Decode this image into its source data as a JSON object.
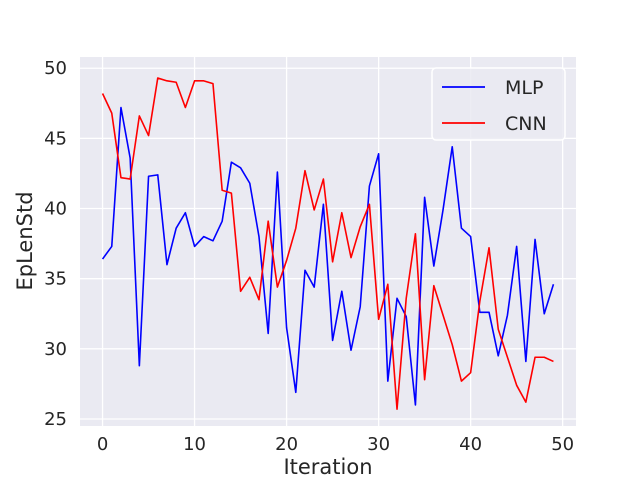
{
  "chart_data": {
    "type": "line",
    "title": "",
    "xlabel": "Iteration",
    "ylabel": "EpLenStd",
    "xlim": [
      -2.45,
      51.45
    ],
    "ylim": [
      24.5,
      50.8
    ],
    "xticks": [
      0,
      10,
      20,
      30,
      40,
      50
    ],
    "yticks": [
      25,
      30,
      35,
      40,
      45,
      50
    ],
    "grid": true,
    "background": "#eaeaf2",
    "legend_position": "top-right",
    "x": [
      0,
      1,
      2,
      3,
      4,
      5,
      6,
      7,
      8,
      9,
      10,
      11,
      12,
      13,
      14,
      15,
      16,
      17,
      18,
      19,
      20,
      21,
      22,
      23,
      24,
      25,
      26,
      27,
      28,
      29,
      30,
      31,
      32,
      33,
      34,
      35,
      36,
      37,
      38,
      39,
      40,
      41,
      42,
      43,
      44,
      45,
      46,
      47,
      48,
      49
    ],
    "series": [
      {
        "name": "MLP",
        "color": "#0000ff",
        "values": [
          36.4,
          37.3,
          47.2,
          43.6,
          28.8,
          42.3,
          42.4,
          36.0,
          38.6,
          39.7,
          37.3,
          38.0,
          37.7,
          39.1,
          43.3,
          42.9,
          41.8,
          38.0,
          31.1,
          42.6,
          31.5,
          26.9,
          35.6,
          34.4,
          40.3,
          30.6,
          34.1,
          29.9,
          33.0,
          41.6,
          43.9,
          27.7,
          33.6,
          32.3,
          26.0,
          40.8,
          35.9,
          39.9,
          44.4,
          38.6,
          38.0,
          32.6,
          32.6,
          29.5,
          32.4,
          37.3,
          29.1,
          37.8,
          32.5,
          34.6
        ]
      },
      {
        "name": "CNN",
        "color": "#ff0000",
        "values": [
          48.2,
          46.8,
          42.2,
          42.1,
          46.6,
          45.2,
          49.3,
          49.1,
          49.0,
          47.2,
          49.1,
          49.1,
          48.9,
          41.3,
          41.1,
          34.1,
          35.1,
          33.5,
          39.1,
          34.4,
          36.3,
          38.6,
          42.7,
          39.9,
          42.1,
          36.2,
          39.7,
          36.5,
          38.7,
          40.3,
          32.1,
          34.6,
          25.7,
          33.6,
          38.2,
          27.8,
          34.5,
          32.4,
          30.3,
          27.7,
          28.3,
          33.4,
          37.2,
          31.4,
          29.4,
          27.4,
          26.2,
          29.4,
          29.4,
          29.1
        ]
      }
    ]
  }
}
